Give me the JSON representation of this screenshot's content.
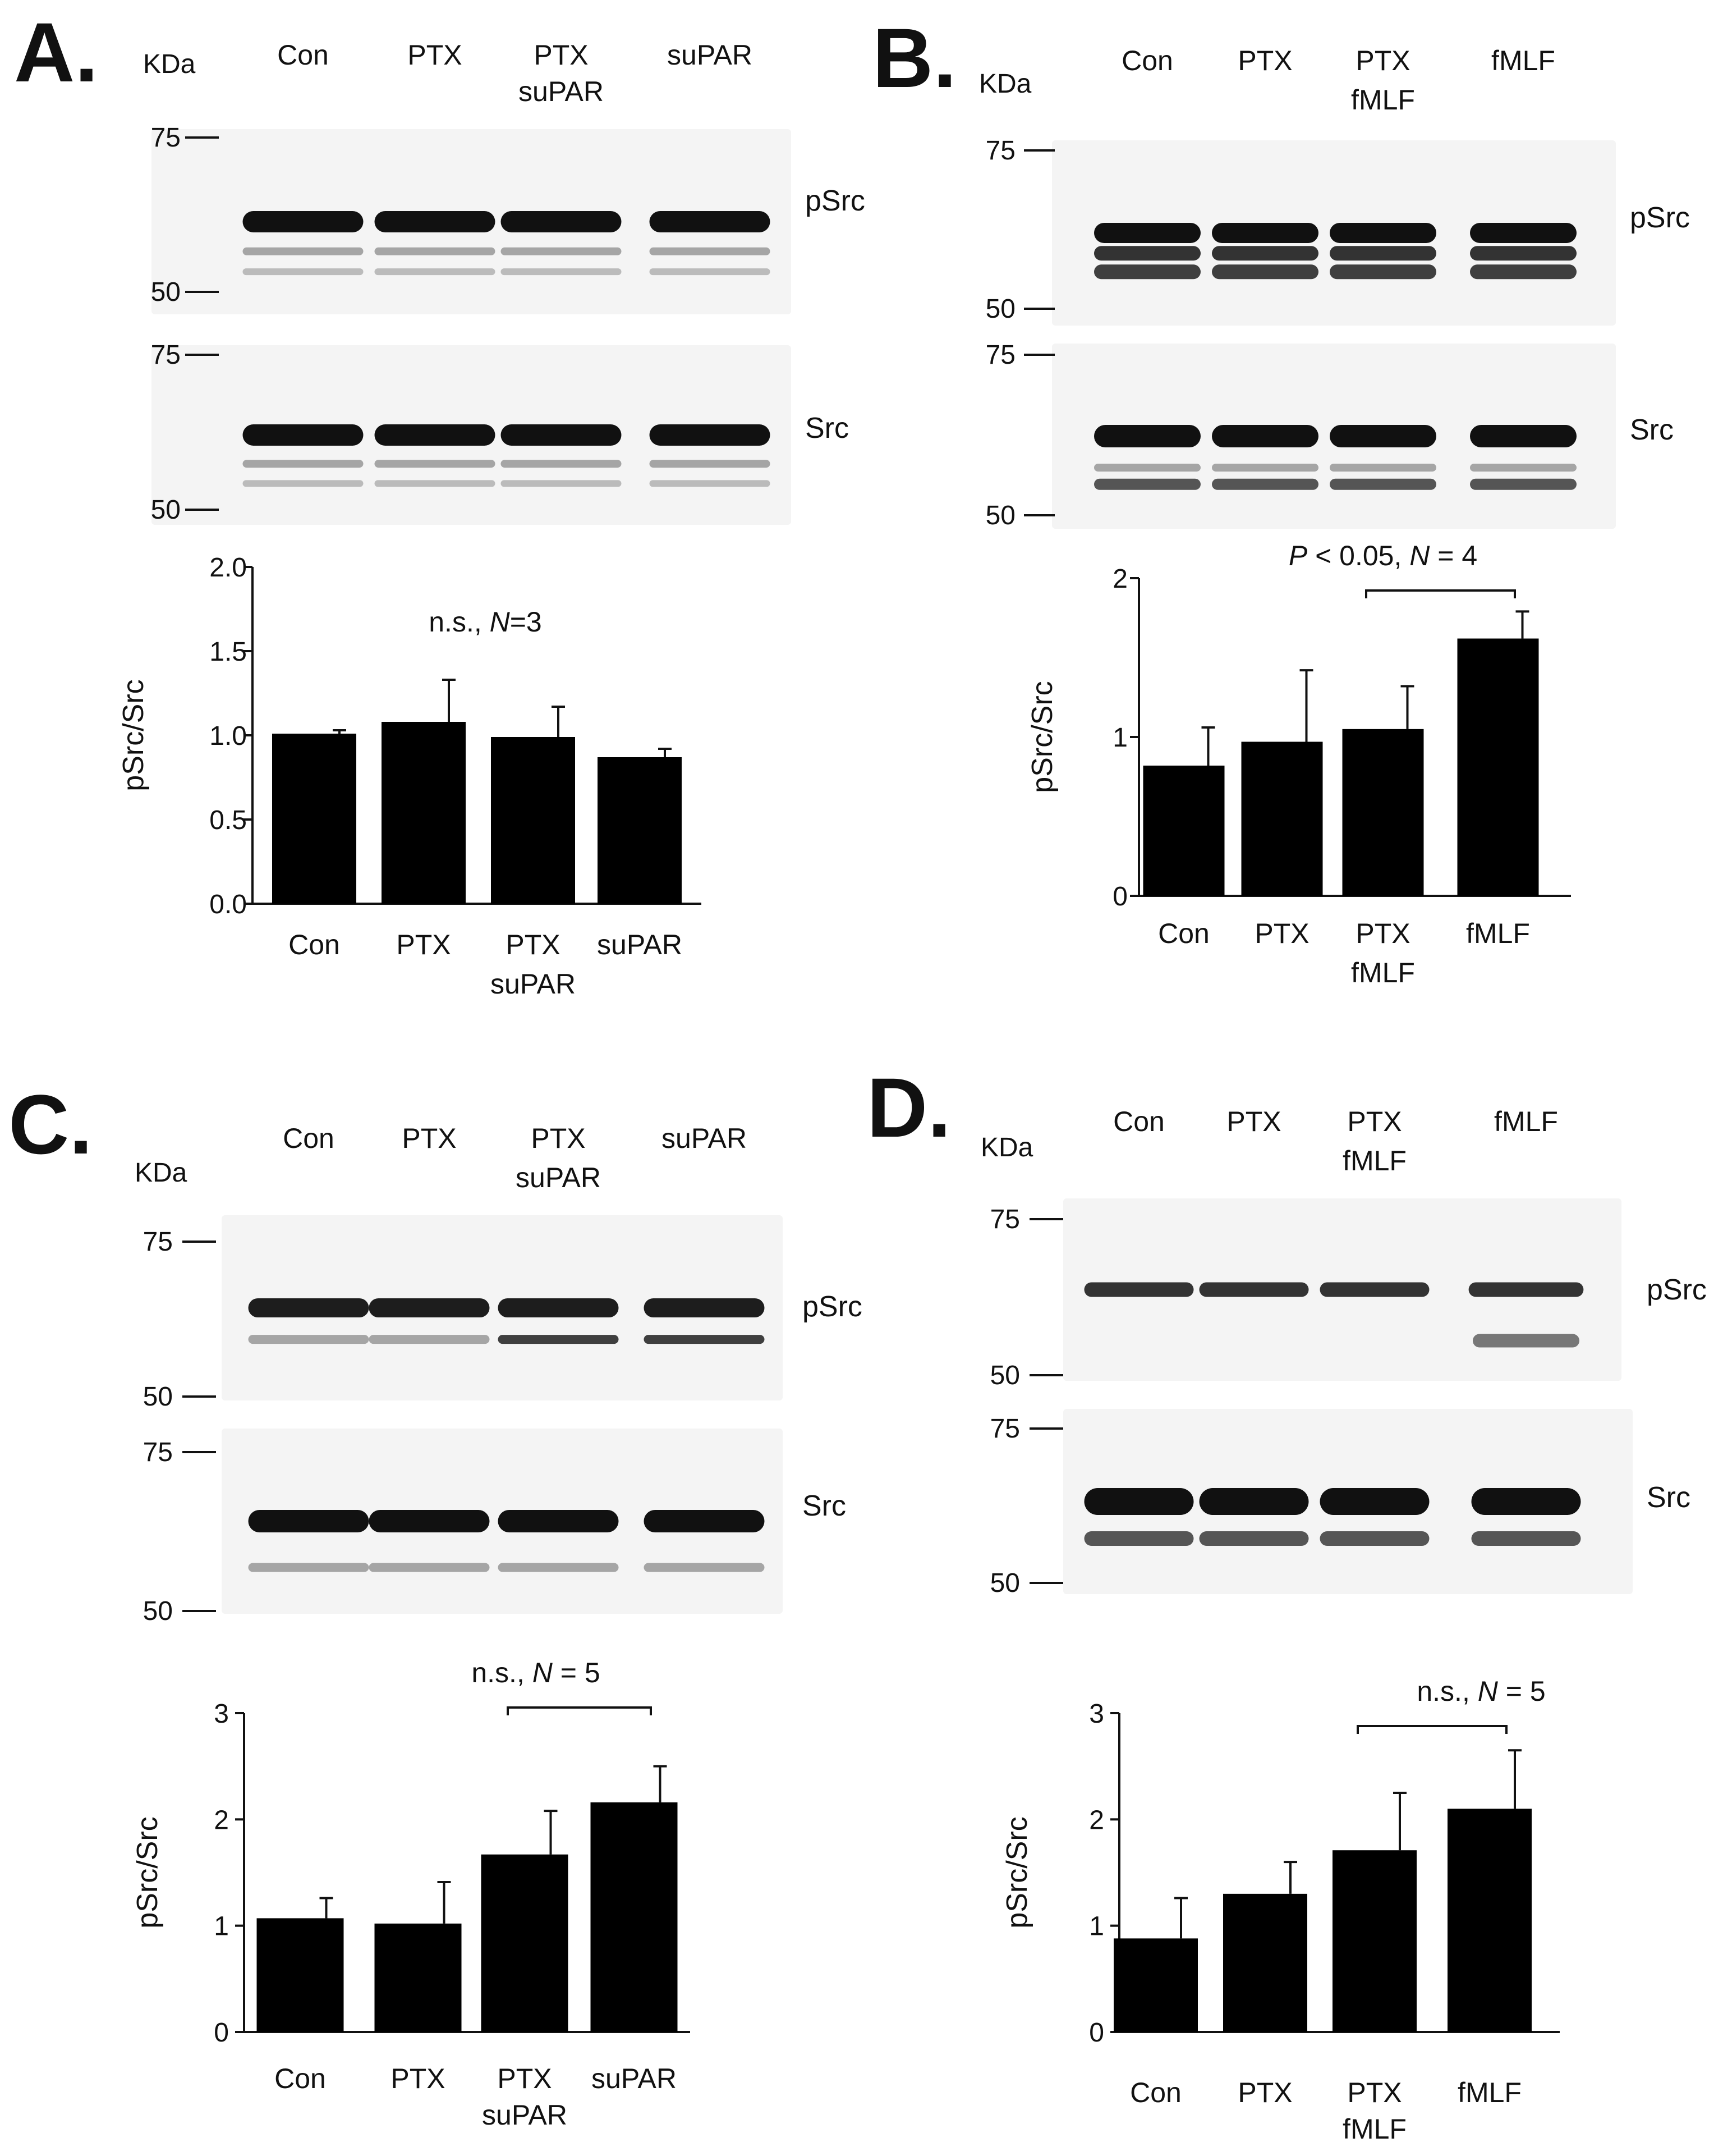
{
  "figure": {
    "blot_text": {
      "kda": "KDa",
      "marker_75": "75",
      "marker_50": "50"
    },
    "blot_colors": {
      "background": "#ffffff",
      "membrane": "#f4f4f4",
      "band": "#111111",
      "bars": "#000000"
    },
    "panels": [
      {
        "id": "A",
        "letter": "A.",
        "lanes": [
          [
            "Con"
          ],
          [
            "PTX"
          ],
          [
            "PTX",
            "suPAR"
          ],
          [
            "suPAR"
          ]
        ],
        "blot_labels": [
          "pSrc",
          "Src"
        ],
        "show_kda": true
      },
      {
        "id": "B",
        "letter": "B.",
        "lanes": [
          [
            "Con"
          ],
          [
            "PTX"
          ],
          [
            "PTX",
            "fMLF"
          ],
          [
            "fMLF"
          ]
        ],
        "blot_labels": [
          "pSrc",
          "Src"
        ],
        "show_kda": true
      },
      {
        "id": "C",
        "letter": "C.",
        "lanes": [
          [
            "Con"
          ],
          [
            "PTX"
          ],
          [
            "PTX",
            "suPAR"
          ],
          [
            "suPAR"
          ]
        ],
        "blot_labels": [
          "pSrc",
          "Src"
        ],
        "show_kda": true
      },
      {
        "id": "D",
        "letter": "D.",
        "lanes": [
          [
            "Con"
          ],
          [
            "PTX"
          ],
          [
            "PTX",
            "fMLF"
          ],
          [
            "fMLF"
          ]
        ],
        "blot_labels": [
          "pSrc",
          "Src"
        ],
        "show_kda": true
      }
    ]
  },
  "chart_data": [
    {
      "panel": "A",
      "type": "bar",
      "categories": [
        [
          "Con"
        ],
        [
          "PTX"
        ],
        [
          "PTX",
          "suPAR"
        ],
        [
          "suPAR"
        ]
      ],
      "values": [
        1.01,
        1.08,
        0.99,
        0.87
      ],
      "errors": [
        0.02,
        0.25,
        0.18,
        0.05
      ],
      "ylabel": "pSrc/Src",
      "ylim": [
        0,
        2
      ],
      "yticks": [
        "0.0",
        "0.5",
        "1.0",
        "1.5",
        "2.0"
      ],
      "annotation": {
        "text": "n.s., ",
        "italic": "N",
        "suffix": "=3",
        "bracket": null
      }
    },
    {
      "panel": "B",
      "type": "bar",
      "categories": [
        [
          "Con"
        ],
        [
          "PTX"
        ],
        [
          "PTX",
          "fMLF"
        ],
        [
          "fMLF"
        ]
      ],
      "values": [
        0.82,
        0.97,
        1.05,
        1.62
      ],
      "errors": [
        0.24,
        0.45,
        0.27,
        0.17
      ],
      "ylabel": "pSrc/Src",
      "ylim": [
        0,
        2
      ],
      "yticks": [
        "0",
        "1",
        "2"
      ],
      "annotation": {
        "text": "",
        "italic": "P",
        "suffix": " < 0.05, ",
        "italic2": "N",
        "suffix2": " = 4",
        "bracket": [
          2,
          3
        ]
      }
    },
    {
      "panel": "C",
      "type": "bar",
      "categories": [
        [
          "Con"
        ],
        [
          "PTX"
        ],
        [
          "PTX",
          "suPAR"
        ],
        [
          "suPAR"
        ]
      ],
      "values": [
        1.07,
        1.02,
        1.67,
        2.16
      ],
      "errors": [
        0.19,
        0.39,
        0.41,
        0.34
      ],
      "ylabel": "pSrc/Src",
      "ylim": [
        0,
        3
      ],
      "yticks": [
        "0",
        "1",
        "2",
        "3"
      ],
      "annotation": {
        "text": "n.s., ",
        "italic": "N",
        "suffix": " = 5",
        "bracket": [
          2,
          3
        ]
      }
    },
    {
      "panel": "D",
      "type": "bar",
      "categories": [
        [
          "Con"
        ],
        [
          "PTX"
        ],
        [
          "PTX",
          "fMLF"
        ],
        [
          "fMLF"
        ]
      ],
      "values": [
        0.88,
        1.3,
        1.71,
        2.1
      ],
      "errors": [
        0.38,
        0.3,
        0.54,
        0.55
      ],
      "ylabel": "pSrc/Src",
      "ylim": [
        0,
        3
      ],
      "yticks": [
        "0",
        "1",
        "2",
        "3"
      ],
      "annotation": {
        "text": "n.s., ",
        "italic": "N",
        "suffix": " = 5",
        "bracket": [
          2,
          3
        ]
      }
    }
  ]
}
